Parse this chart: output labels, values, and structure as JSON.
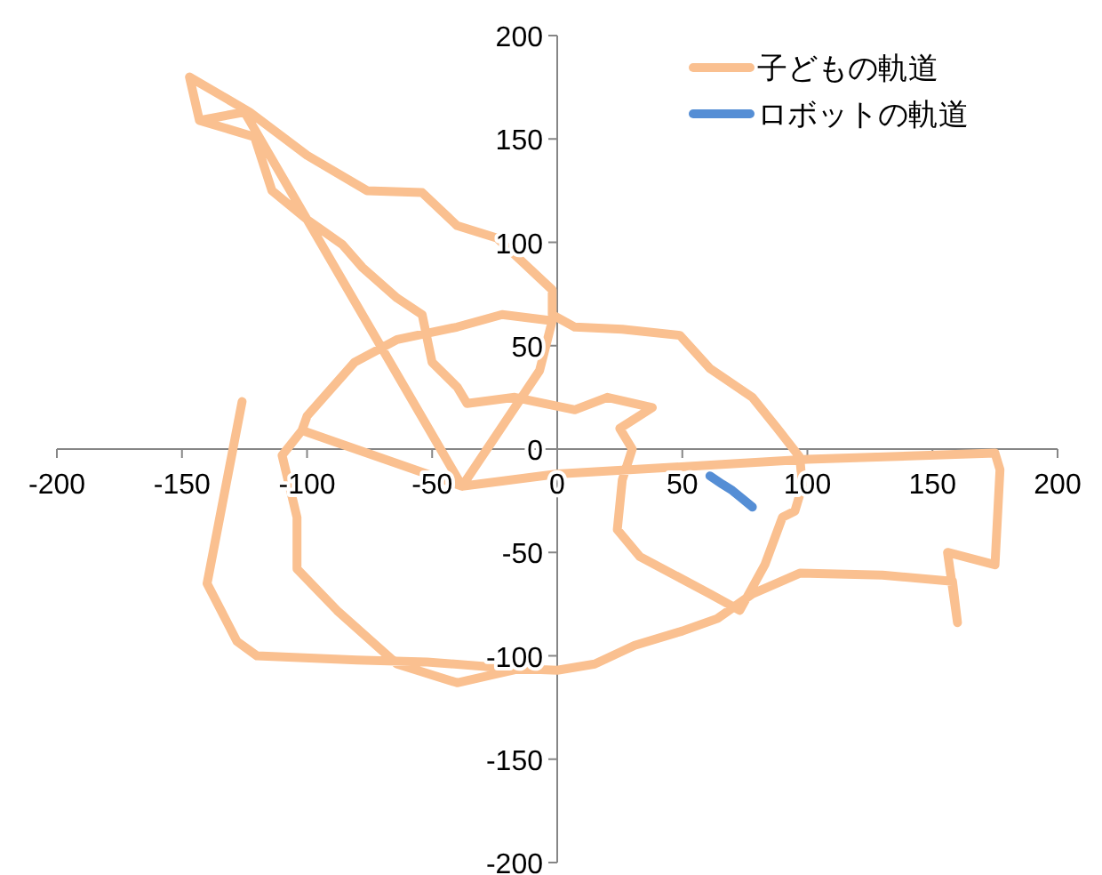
{
  "chart_data": {
    "type": "line",
    "xlim": [
      -200,
      200
    ],
    "ylim": [
      -200,
      200
    ],
    "xticks": [
      -200,
      -150,
      -100,
      -50,
      0,
      50,
      100,
      150,
      200
    ],
    "yticks": [
      -200,
      -150,
      -100,
      -50,
      0,
      50,
      100,
      150,
      200
    ],
    "grid": false,
    "legend": "top right",
    "marker": "none",
    "line_style": "solid",
    "series": [
      {
        "name": "子どもの軌道",
        "color": "#fac090",
        "x": [
          -7,
          -40,
          -64,
          -88,
          -104,
          -104,
          -110,
          -102,
          -100,
          -81,
          -64,
          -40,
          -22,
          -2,
          -7,
          -38,
          -102,
          -38,
          -125,
          -143,
          -147,
          -123,
          -100,
          -76,
          -54,
          -40,
          -24,
          -2,
          -2,
          7,
          26,
          49,
          61,
          78,
          88,
          97,
          98,
          95,
          90,
          83,
          73,
          61,
          33,
          24,
          26,
          30,
          25,
          38,
          20,
          7,
          -17,
          -36,
          -40,
          -50,
          -54,
          -64,
          -78,
          -86,
          -100,
          -114,
          -121,
          -143,
          -125,
          -38,
          0,
          100,
          175,
          177,
          176,
          175,
          156,
          160,
          158,
          130,
          97,
          78,
          64,
          50,
          31,
          15,
          0,
          -20,
          -52,
          -80,
          -120,
          -128,
          -140,
          -126
        ],
        "values": [
          -104,
          -113,
          -104,
          -78,
          -58,
          -33,
          -3,
          9,
          16,
          42,
          53,
          59,
          65,
          62,
          38,
          -18,
          9,
          -18,
          163,
          159,
          180,
          163,
          142,
          125,
          124,
          108,
          102,
          77,
          65,
          59,
          58,
          55,
          39,
          25,
          10,
          -4,
          -18,
          -30,
          -33,
          -56,
          -78,
          -70,
          -52,
          -39,
          -15,
          0,
          10,
          20,
          25,
          19,
          25,
          22,
          30,
          42,
          65,
          73,
          88,
          99,
          111,
          125,
          151,
          159,
          163,
          -18,
          -12,
          -5,
          -2,
          -10,
          -33,
          -56,
          -50,
          -84,
          -64,
          -61,
          -60,
          -70,
          -82,
          -88,
          -95,
          -104,
          -107,
          -106,
          -103,
          -102,
          -100,
          -93,
          -65,
          23
        ]
      },
      {
        "name": "ロボットの軌道",
        "color": "#558ed5",
        "x": [
          61,
          66,
          70,
          74,
          78
        ],
        "values": [
          -13,
          -17,
          -20,
          -24,
          -28
        ]
      }
    ]
  }
}
